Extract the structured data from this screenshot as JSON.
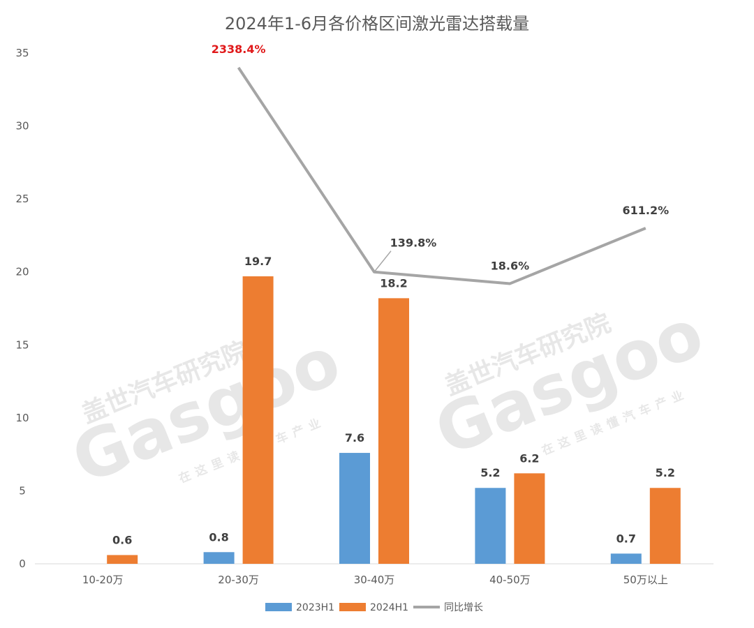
{
  "chart_data": {
    "type": "bar",
    "title": "2024年1-6月各价格区间激光雷达搭载量",
    "categories": [
      "10-20万",
      "20-30万",
      "30-40万",
      "40-50万",
      "50万以上"
    ],
    "ylim": [
      0,
      35
    ],
    "yticks": [
      0,
      5,
      10,
      15,
      20,
      25,
      30,
      35
    ],
    "grid": false,
    "legend_position": "bottom",
    "series": [
      {
        "name": "2023H1",
        "kind": "bar",
        "color": "#5b9bd5",
        "values": [
          null,
          0.8,
          7.6,
          5.2,
          0.7
        ],
        "labels": [
          "",
          "0.8",
          "7.6",
          "5.2",
          "0.7"
        ]
      },
      {
        "name": "2024H1",
        "kind": "bar",
        "color": "#ed7d31",
        "values": [
          0.6,
          19.7,
          18.2,
          6.2,
          5.2
        ],
        "labels": [
          "0.6",
          "19.7",
          "18.2",
          "6.2",
          "5.2"
        ]
      },
      {
        "name": "同比增长",
        "kind": "line",
        "color": "#a5a5a5",
        "values": [
          null,
          34.0,
          20.0,
          19.2,
          23.0
        ],
        "labels": [
          "",
          "2338.4%",
          "139.8%",
          "18.6%",
          "611.2%"
        ],
        "highlight_label_color": "#e0191a",
        "highlight_index": 1
      }
    ],
    "watermark": [
      "盖世汽车研究院",
      "Gasgoo",
      "在这里读懂汽车产业"
    ]
  }
}
